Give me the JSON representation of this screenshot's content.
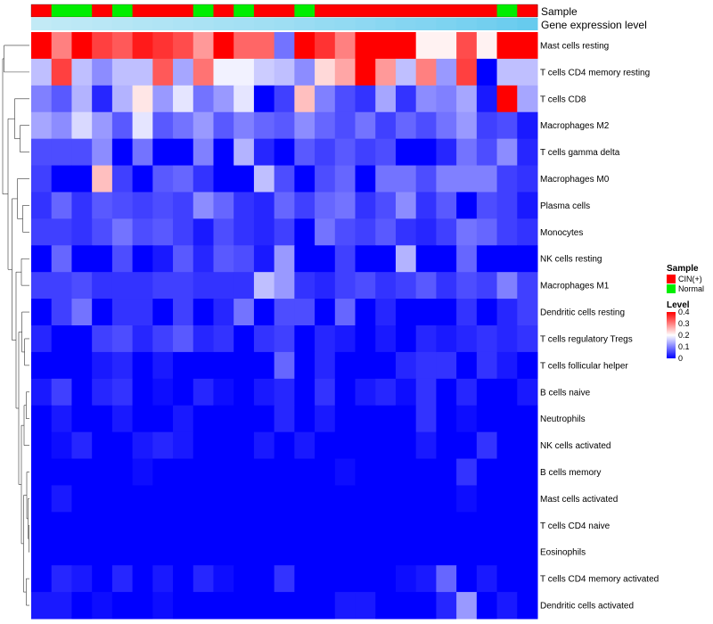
{
  "chart_data": {
    "type": "heatmap",
    "title": "",
    "annotation_tracks": [
      {
        "name": "Sample",
        "label": "Sample"
      },
      {
        "name": "Gene expression level",
        "label": "Gene expression level"
      }
    ],
    "sample_groups": [
      "C",
      "N",
      "N",
      "C",
      "N",
      "C",
      "C",
      "C",
      "N",
      "C",
      "N",
      "C",
      "C",
      "N",
      "C",
      "C",
      "C",
      "C",
      "C",
      "C",
      "C",
      "C",
      "C",
      "N",
      "C"
    ],
    "gene_expression_level": [
      0.05,
      0.08,
      0.1,
      0.12,
      0.15,
      0.18,
      0.2,
      0.22,
      0.25,
      0.28,
      0.3,
      0.32,
      0.35,
      0.38,
      0.42,
      0.45,
      0.48,
      0.52,
      0.55,
      0.58,
      0.62,
      0.66,
      0.7,
      0.75,
      0.8
    ],
    "rows": [
      "Mast cells resting",
      "T cells CD4 memory resting",
      "T cells CD8",
      "Macrophages M2",
      "T cells gamma delta",
      "Macrophages M0",
      "Plasma cells",
      "Monocytes",
      "NK cells resting",
      "Macrophages M1",
      "Dendritic cells resting",
      "T cells regulatory  Tregs",
      "T cells follicular helper",
      "B cells naive",
      "Neutrophils",
      "NK cells activated",
      "B cells memory",
      "Mast cells activated",
      "T cells CD4 naive",
      "Eosinophils",
      "T cells CD4 memory activated",
      "Dendritic cells activated"
    ],
    "values": [
      [
        0.4,
        0.3,
        0.4,
        0.35,
        0.33,
        0.38,
        0.36,
        0.34,
        0.28,
        0.4,
        0.32,
        0.32,
        0.09,
        0.4,
        0.36,
        0.3,
        0.4,
        0.4,
        0.4,
        0.21,
        0.21,
        0.34,
        0.21,
        0.4,
        0.4
      ],
      [
        0.15,
        0.35,
        0.15,
        0.11,
        0.15,
        0.15,
        0.33,
        0.13,
        0.31,
        0.19,
        0.19,
        0.16,
        0.15,
        0.11,
        0.23,
        0.27,
        0.4,
        0.28,
        0.15,
        0.3,
        0.12,
        0.35,
        0.0,
        0.15,
        0.15
      ],
      [
        0.1,
        0.07,
        0.14,
        0.03,
        0.14,
        0.22,
        0.12,
        0.18,
        0.09,
        0.12,
        0.18,
        0.0,
        0.05,
        0.25,
        0.1,
        0.06,
        0.04,
        0.13,
        0.04,
        0.11,
        0.1,
        0.13,
        0.02,
        0.4,
        0.13
      ],
      [
        0.13,
        0.11,
        0.17,
        0.12,
        0.07,
        0.18,
        0.07,
        0.09,
        0.12,
        0.07,
        0.1,
        0.08,
        0.07,
        0.11,
        0.08,
        0.06,
        0.09,
        0.05,
        0.08,
        0.06,
        0.09,
        0.12,
        0.05,
        0.06,
        0.02
      ],
      [
        0.06,
        0.06,
        0.06,
        0.11,
        0.0,
        0.09,
        0.0,
        0.0,
        0.1,
        0.0,
        0.14,
        0.03,
        0.0,
        0.07,
        0.05,
        0.07,
        0.05,
        0.06,
        0.0,
        0.0,
        0.03,
        0.09,
        0.06,
        0.11,
        0.03
      ],
      [
        0.05,
        0.0,
        0.0,
        0.25,
        0.05,
        0.0,
        0.07,
        0.08,
        0.04,
        0.0,
        0.0,
        0.15,
        0.06,
        0.0,
        0.06,
        0.08,
        0.0,
        0.09,
        0.09,
        0.06,
        0.1,
        0.1,
        0.1,
        0.05,
        0.04
      ],
      [
        0.04,
        0.08,
        0.04,
        0.07,
        0.06,
        0.05,
        0.06,
        0.05,
        0.11,
        0.08,
        0.04,
        0.03,
        0.08,
        0.05,
        0.08,
        0.09,
        0.04,
        0.06,
        0.11,
        0.04,
        0.07,
        0.0,
        0.06,
        0.05,
        0.02
      ],
      [
        0.05,
        0.05,
        0.04,
        0.06,
        0.09,
        0.06,
        0.07,
        0.05,
        0.02,
        0.06,
        0.04,
        0.03,
        0.05,
        0.0,
        0.09,
        0.06,
        0.05,
        0.07,
        0.04,
        0.03,
        0.05,
        0.09,
        0.08,
        0.05,
        0.04
      ],
      [
        0.0,
        0.08,
        0.0,
        0.0,
        0.06,
        0.0,
        0.02,
        0.07,
        0.03,
        0.07,
        0.06,
        0.02,
        0.12,
        0.0,
        0.0,
        0.05,
        0.0,
        0.0,
        0.14,
        0.0,
        0.0,
        0.08,
        0.0,
        0.0,
        0.0
      ],
      [
        0.05,
        0.05,
        0.06,
        0.04,
        0.04,
        0.04,
        0.05,
        0.05,
        0.04,
        0.04,
        0.04,
        0.15,
        0.12,
        0.04,
        0.03,
        0.05,
        0.06,
        0.04,
        0.05,
        0.07,
        0.04,
        0.06,
        0.05,
        0.1,
        0.05
      ],
      [
        0.0,
        0.05,
        0.09,
        0.0,
        0.04,
        0.04,
        0.0,
        0.05,
        0.0,
        0.03,
        0.09,
        0.0,
        0.06,
        0.06,
        0.0,
        0.08,
        0.0,
        0.03,
        0.0,
        0.0,
        0.0,
        0.04,
        0.0,
        0.03,
        0.05
      ],
      [
        0.03,
        0.0,
        0.0,
        0.05,
        0.06,
        0.03,
        0.05,
        0.07,
        0.03,
        0.04,
        0.0,
        0.04,
        0.05,
        0.0,
        0.03,
        0.02,
        0.0,
        0.02,
        0.0,
        0.03,
        0.02,
        0.03,
        0.04,
        0.03,
        0.04
      ],
      [
        0.0,
        0.0,
        0.0,
        0.02,
        0.03,
        0.0,
        0.02,
        0.0,
        0.0,
        0.0,
        0.0,
        0.0,
        0.08,
        0.0,
        0.03,
        0.0,
        0.0,
        0.0,
        0.03,
        0.04,
        0.04,
        0.0,
        0.04,
        0.02,
        0.0
      ],
      [
        0.02,
        0.05,
        0.0,
        0.03,
        0.04,
        0.0,
        0.01,
        0.0,
        0.03,
        0.01,
        0.0,
        0.02,
        0.03,
        0.0,
        0.04,
        0.0,
        0.02,
        0.03,
        0.01,
        0.04,
        0.0,
        0.03,
        0.0,
        0.0,
        0.02
      ],
      [
        0.0,
        0.02,
        0.0,
        0.0,
        0.02,
        0.0,
        0.0,
        0.02,
        0.0,
        0.0,
        0.0,
        0.0,
        0.03,
        0.0,
        0.02,
        0.0,
        0.0,
        0.0,
        0.0,
        0.04,
        0.0,
        0.01,
        0.0,
        0.0,
        0.0
      ],
      [
        0.0,
        0.01,
        0.03,
        0.0,
        0.0,
        0.02,
        0.03,
        0.02,
        0.0,
        0.0,
        0.0,
        0.02,
        0.0,
        0.02,
        0.0,
        0.0,
        0.0,
        0.0,
        0.0,
        0.02,
        0.0,
        0.0,
        0.04,
        0.0,
        0.0
      ],
      [
        0.0,
        0.0,
        0.0,
        0.0,
        0.0,
        0.01,
        0.0,
        0.0,
        0.0,
        0.0,
        0.0,
        0.0,
        0.0,
        0.0,
        0.0,
        0.01,
        0.0,
        0.0,
        0.0,
        0.0,
        0.0,
        0.04,
        0.0,
        0.0,
        0.0
      ],
      [
        0.0,
        0.02,
        0.0,
        0.0,
        0.0,
        0.0,
        0.0,
        0.0,
        0.0,
        0.0,
        0.0,
        0.0,
        0.0,
        0.0,
        0.0,
        0.0,
        0.0,
        0.0,
        0.0,
        0.0,
        0.0,
        0.01,
        0.0,
        0.0,
        0.0
      ],
      [
        0.0,
        0.0,
        0.0,
        0.0,
        0.0,
        0.0,
        0.0,
        0.0,
        0.0,
        0.0,
        0.0,
        0.0,
        0.0,
        0.0,
        0.0,
        0.0,
        0.0,
        0.0,
        0.0,
        0.0,
        0.0,
        0.0,
        0.0,
        0.0,
        0.0
      ],
      [
        0.0,
        0.0,
        0.0,
        0.0,
        0.0,
        0.0,
        0.0,
        0.0,
        0.0,
        0.0,
        0.0,
        0.0,
        0.0,
        0.0,
        0.0,
        0.0,
        0.0,
        0.0,
        0.0,
        0.0,
        0.0,
        0.0,
        0.0,
        0.0,
        0.0
      ],
      [
        0.0,
        0.03,
        0.02,
        0.0,
        0.03,
        0.0,
        0.02,
        0.0,
        0.03,
        0.01,
        0.0,
        0.0,
        0.04,
        0.0,
        0.0,
        0.0,
        0.0,
        0.0,
        0.01,
        0.02,
        0.08,
        0.0,
        0.02,
        0.0,
        0.0
      ],
      [
        0.02,
        0.02,
        0.0,
        0.01,
        0.0,
        0.0,
        0.01,
        0.0,
        0.0,
        0.0,
        0.0,
        0.0,
        0.0,
        0.0,
        0.0,
        0.02,
        0.02,
        0.0,
        0.0,
        0.0,
        0.03,
        0.12,
        0.0,
        0.02,
        0.0
      ]
    ],
    "legend": {
      "sample_title": "Sample",
      "sample_items": [
        {
          "key": "C",
          "label": "CIN(+)",
          "color": "#ff0000"
        },
        {
          "key": "N",
          "label": "Normal",
          "color": "#00ee00"
        }
      ],
      "level_title": "Level",
      "level_ticks": [
        "0.4",
        "0.3",
        "0.2",
        "0.1",
        "0"
      ],
      "level_tick_values": [
        0.4,
        0.3,
        0.2,
        0.1,
        0.0
      ],
      "position": "right"
    },
    "color_scale": {
      "low": "#0000ff",
      "mid": "#ffffff",
      "high": "#ff0000",
      "min": 0,
      "mid_value": 0.2,
      "max": 0.4
    },
    "expression_colors": {
      "low": "#c8ecf7",
      "high": "#4fc3ec"
    }
  }
}
